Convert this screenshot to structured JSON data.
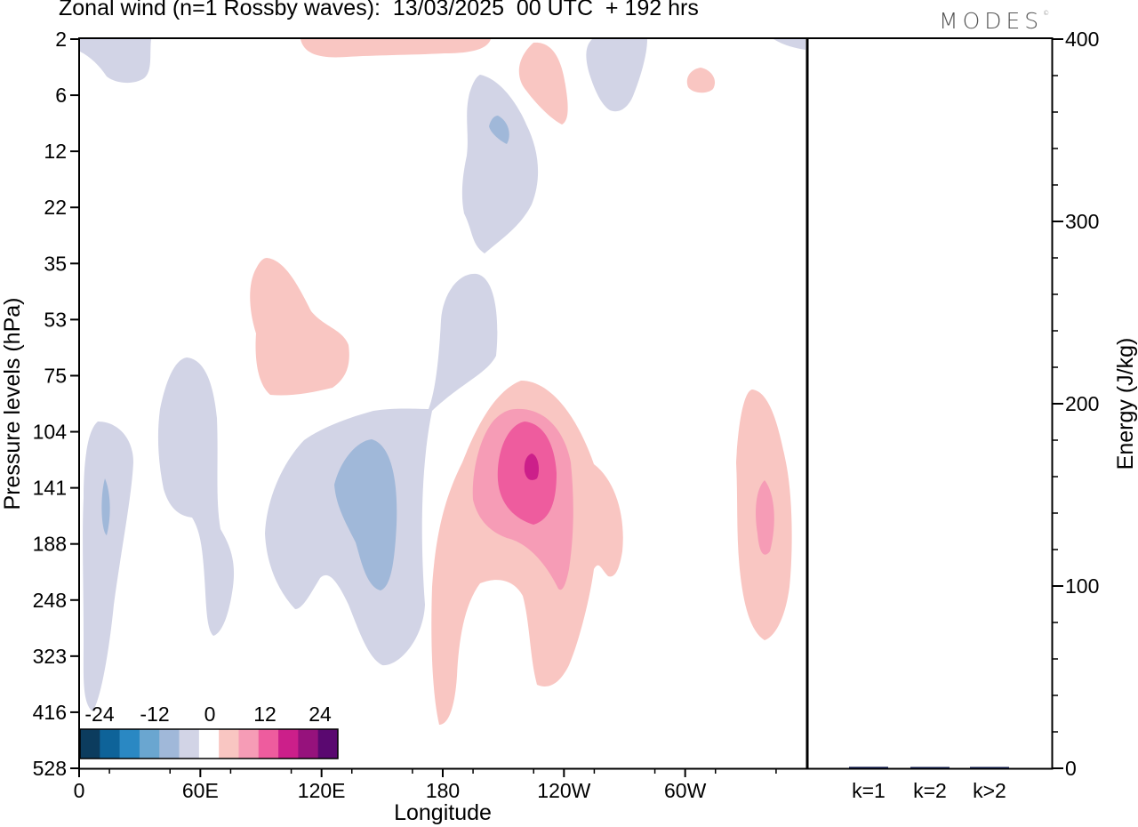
{
  "title": "Zonal wind (n=1 Rossby waves):  13/03/2025  00 UTC  + 192 hrs",
  "brand": "MODES",
  "brand_mark": "©",
  "chart_data": [
    {
      "type": "heatmap",
      "title": "Zonal wind (n=1 Rossby waves):  13/03/2025  00 UTC  + 192 hrs",
      "xlabel": "Longitude",
      "ylabel": "Pressure levels (hPa)",
      "x_ticks": [
        "0",
        "60E",
        "120E",
        "180",
        "120W",
        "60W"
      ],
      "y_ticks": [
        "2",
        "6",
        "12",
        "22",
        "35",
        "53",
        "75",
        "104",
        "141",
        "188",
        "248",
        "323",
        "416",
        "528"
      ],
      "colorbar": {
        "labels": [
          "-24",
          "-12",
          "0",
          "12",
          "24"
        ],
        "colors": [
          "#0c3c5e",
          "#0e6399",
          "#2a88c3",
          "#6aa6d0",
          "#a0b8d9",
          "#d2d4e6",
          "#ffffff",
          "#f9c6c2",
          "#f69cb6",
          "#ee5c9e",
          "#cc1f8a",
          "#96127c",
          "#5a0870"
        ]
      },
      "regions": [
        {
          "sign": "positive",
          "level": 3,
          "center_lon": 222,
          "center_level": "141"
        },
        {
          "sign": "positive",
          "level": 1,
          "center_lon": 340,
          "center_level": "141"
        },
        {
          "sign": "negative",
          "level": 2,
          "center_lon": 145,
          "center_level": "141"
        },
        {
          "sign": "negative",
          "level": 2,
          "center_lon": 12,
          "center_level": "141"
        },
        {
          "sign": "negative",
          "level": 2,
          "center_lon": 208,
          "center_level": "12"
        }
      ],
      "grid": false
    },
    {
      "type": "bar",
      "categories": [
        "k=1",
        "k=2",
        "k>2"
      ],
      "values": [
        0.8,
        0,
        0.5
      ],
      "ylabel": "Energy (J/kg)",
      "ylim": [
        0,
        400
      ],
      "y_ticks": [
        "0",
        "100",
        "200",
        "300",
        "400"
      ],
      "bar_color": "#0a1440"
    }
  ]
}
